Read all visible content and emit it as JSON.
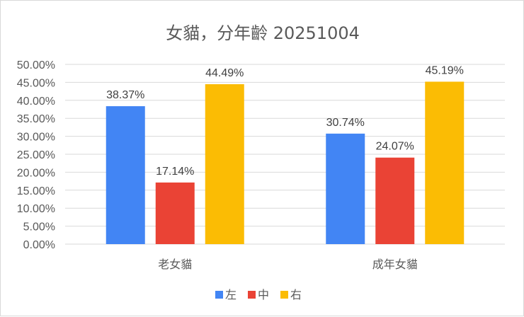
{
  "chart_data": {
    "type": "bar",
    "title": "女貓，分年齡 20251004",
    "categories": [
      "老女貓",
      "成年女貓"
    ],
    "series": [
      {
        "name": "左",
        "color": "#4285f4",
        "values": [
          38.37,
          30.74
        ],
        "labels": [
          "38.37%",
          "30.74%"
        ]
      },
      {
        "name": "中",
        "color": "#ea4335",
        "values": [
          17.14,
          24.07
        ],
        "labels": [
          "17.14%",
          "24.07%"
        ]
      },
      {
        "name": "右",
        "color": "#fbbc04",
        "values": [
          44.49,
          45.19
        ],
        "labels": [
          "44.49%",
          "45.19%"
        ]
      }
    ],
    "ylim": [
      0,
      50
    ],
    "yticks": [
      "0.00%",
      "5.00%",
      "10.00%",
      "15.00%",
      "20.00%",
      "25.00%",
      "30.00%",
      "35.00%",
      "40.00%",
      "45.00%",
      "50.00%"
    ],
    "grid": true,
    "legend_position": "bottom",
    "gridline_color": "#d9d9d9"
  }
}
